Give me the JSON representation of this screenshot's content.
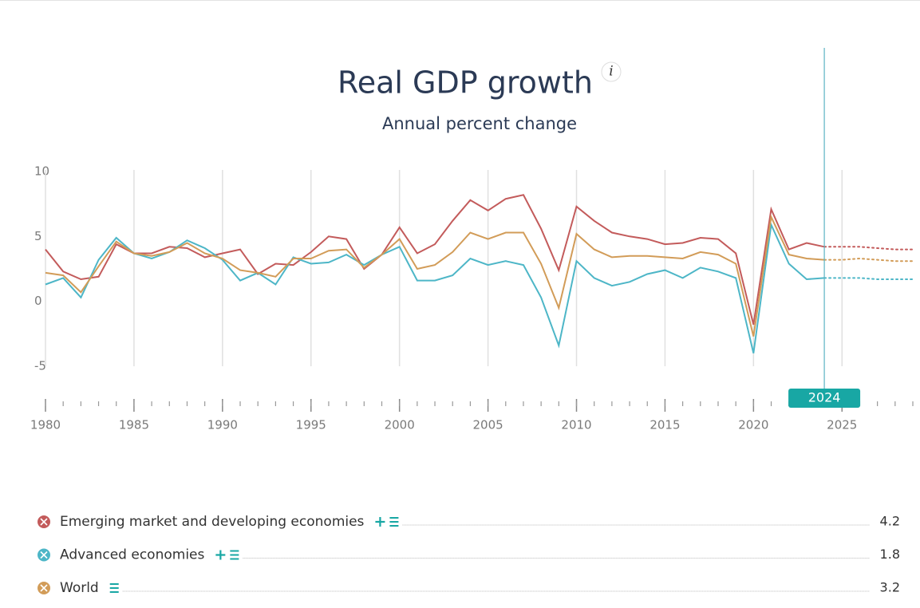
{
  "chart_data": {
    "type": "line",
    "title": "Real GDP growth",
    "subtitle": "Annual percent change",
    "x": [
      1980,
      1981,
      1982,
      1983,
      1984,
      1985,
      1986,
      1987,
      1988,
      1989,
      1990,
      1991,
      1992,
      1993,
      1994,
      1995,
      1996,
      1997,
      1998,
      1999,
      2000,
      2001,
      2002,
      2003,
      2004,
      2005,
      2006,
      2007,
      2008,
      2009,
      2010,
      2011,
      2012,
      2013,
      2014,
      2015,
      2016,
      2017,
      2018,
      2019,
      2020,
      2021,
      2022,
      2023,
      2024,
      2025,
      2026,
      2027,
      2028,
      2029
    ],
    "series": [
      {
        "name": "Emerging market and developing economies",
        "color": "#c35b5b",
        "values": [
          4.0,
          2.3,
          1.7,
          1.9,
          4.4,
          3.7,
          3.7,
          4.2,
          4.1,
          3.4,
          3.7,
          4.0,
          2.1,
          2.9,
          2.8,
          3.8,
          5.0,
          4.8,
          2.5,
          3.6,
          5.7,
          3.7,
          4.4,
          6.2,
          7.8,
          7.0,
          7.9,
          8.2,
          5.6,
          2.4,
          7.3,
          6.2,
          5.3,
          5.0,
          4.8,
          4.4,
          4.5,
          4.9,
          4.8,
          3.7,
          -1.8,
          7.1,
          4.0,
          4.5,
          4.2,
          4.2,
          4.2,
          4.1,
          4.0,
          4.0
        ]
      },
      {
        "name": "Advanced economies",
        "color": "#4db6c7",
        "values": [
          1.3,
          1.8,
          0.3,
          3.2,
          4.9,
          3.7,
          3.3,
          3.8,
          4.7,
          4.1,
          3.2,
          1.6,
          2.2,
          1.3,
          3.4,
          2.9,
          3.0,
          3.6,
          2.8,
          3.6,
          4.2,
          1.6,
          1.6,
          2.0,
          3.3,
          2.8,
          3.1,
          2.8,
          0.3,
          -3.4,
          3.1,
          1.8,
          1.2,
          1.5,
          2.1,
          2.4,
          1.8,
          2.6,
          2.3,
          1.8,
          -4.0,
          5.9,
          2.9,
          1.7,
          1.8,
          1.8,
          1.8,
          1.7,
          1.7,
          1.7
        ]
      },
      {
        "name": "World",
        "color": "#d29c58",
        "values": [
          2.2,
          2.0,
          0.7,
          2.7,
          4.6,
          3.7,
          3.5,
          3.8,
          4.5,
          3.7,
          3.3,
          2.4,
          2.2,
          1.9,
          3.3,
          3.3,
          3.9,
          4.0,
          2.6,
          3.6,
          4.8,
          2.5,
          2.8,
          3.8,
          5.3,
          4.8,
          5.3,
          5.3,
          2.9,
          -0.5,
          5.2,
          4.0,
          3.4,
          3.5,
          3.5,
          3.4,
          3.3,
          3.8,
          3.6,
          2.9,
          -2.7,
          6.5,
          3.6,
          3.3,
          3.2,
          3.2,
          3.3,
          3.2,
          3.1,
          3.1
        ]
      }
    ],
    "highlighted_year": 2024,
    "xlim": [
      1980,
      2029
    ],
    "xticks": [
      1980,
      1985,
      1990,
      1995,
      2000,
      2005,
      2010,
      2015,
      2020,
      2025
    ],
    "ylim": [
      -5,
      10
    ],
    "yticks": [
      10,
      5,
      0,
      -5
    ],
    "grid": true
  }
}
